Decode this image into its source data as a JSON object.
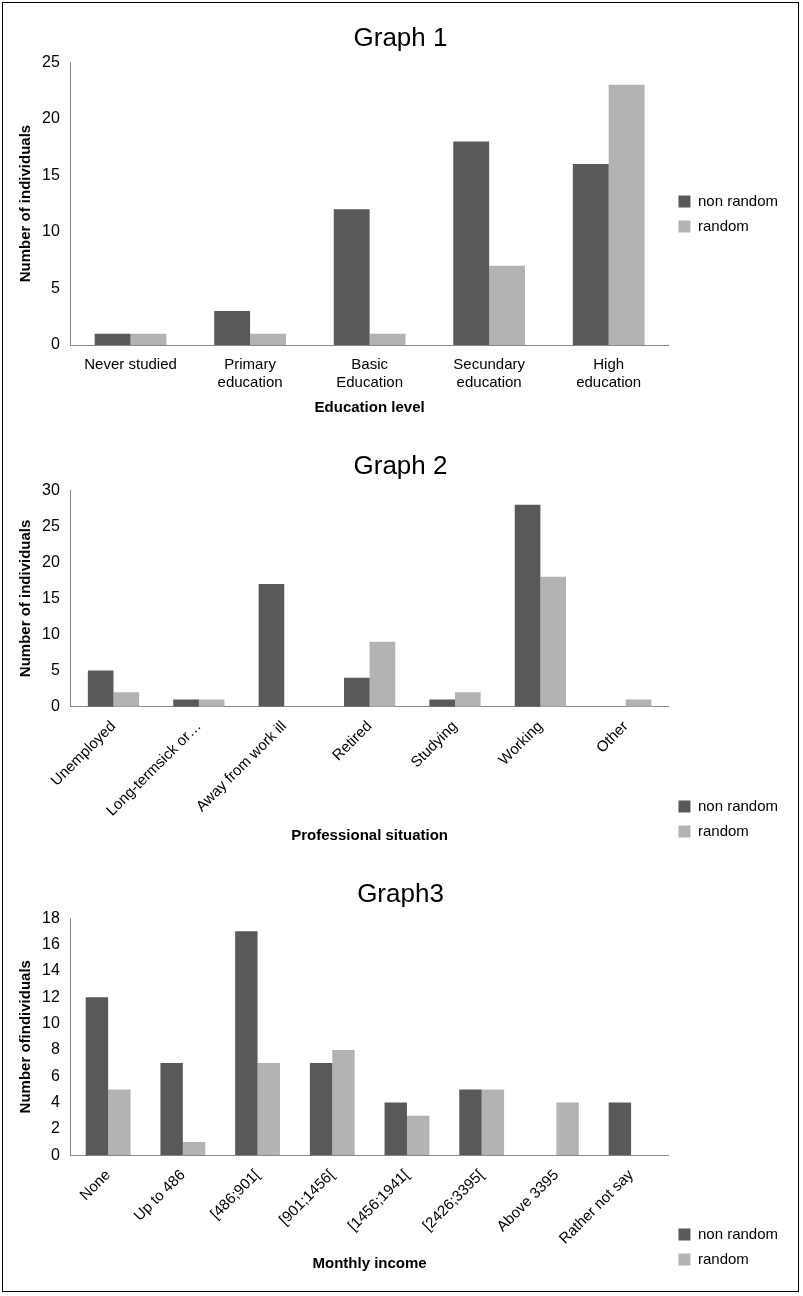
{
  "chart_data": [
    {
      "type": "bar",
      "title": "Graph 1",
      "xlabel": "Education level",
      "ylabel": "Number of individuals",
      "categories": [
        "Never studied",
        "Primary education",
        "Basic Education",
        "Secundary education",
        "High education"
      ],
      "series": [
        {
          "name": "non random",
          "color": "#595959",
          "values": [
            1,
            3,
            12,
            18,
            16
          ]
        },
        {
          "name": "random",
          "color": "#b3b3b3",
          "values": [
            1,
            1,
            1,
            7,
            23
          ]
        }
      ],
      "ylim": [
        0,
        25
      ],
      "yticks": [
        0,
        5,
        10,
        15,
        20,
        25
      ],
      "grid": false,
      "legend": "right"
    },
    {
      "type": "bar",
      "title": "Graph 2",
      "xlabel": "Professional situation",
      "ylabel": "Number of individuals",
      "categories": [
        "Unemployed",
        "Long-termsick or…",
        "Away from work ill",
        "Retired",
        "Studying",
        "Working",
        "Other"
      ],
      "series": [
        {
          "name": "non random",
          "color": "#595959",
          "values": [
            5,
            1,
            17,
            4,
            1,
            28,
            0
          ]
        },
        {
          "name": "random",
          "color": "#b3b3b3",
          "values": [
            2,
            1,
            0,
            9,
            2,
            18,
            1
          ]
        }
      ],
      "ylim": [
        0,
        30
      ],
      "yticks": [
        0,
        5,
        10,
        15,
        20,
        25,
        30
      ],
      "grid": false,
      "legend": "bottom right"
    },
    {
      "type": "bar",
      "title": "Graph3",
      "xlabel": "Monthly income",
      "ylabel": "Number ofindividuals",
      "categories": [
        "None",
        "Up to 486",
        "[486;901[",
        "[901;1456[",
        "[1456;1941[",
        "[2426;3395[",
        "Above 3395",
        "Rather not say"
      ],
      "series": [
        {
          "name": "non random",
          "color": "#595959",
          "values": [
            12,
            7,
            17,
            7,
            4,
            5,
            0,
            4
          ]
        },
        {
          "name": "random",
          "color": "#b3b3b3",
          "values": [
            5,
            1,
            7,
            8,
            3,
            5,
            4,
            0
          ]
        }
      ],
      "ylim": [
        0,
        18
      ],
      "yticks": [
        0,
        2,
        4,
        6,
        8,
        10,
        12,
        14,
        16,
        18
      ],
      "grid": false,
      "legend": "bottom right"
    }
  ]
}
